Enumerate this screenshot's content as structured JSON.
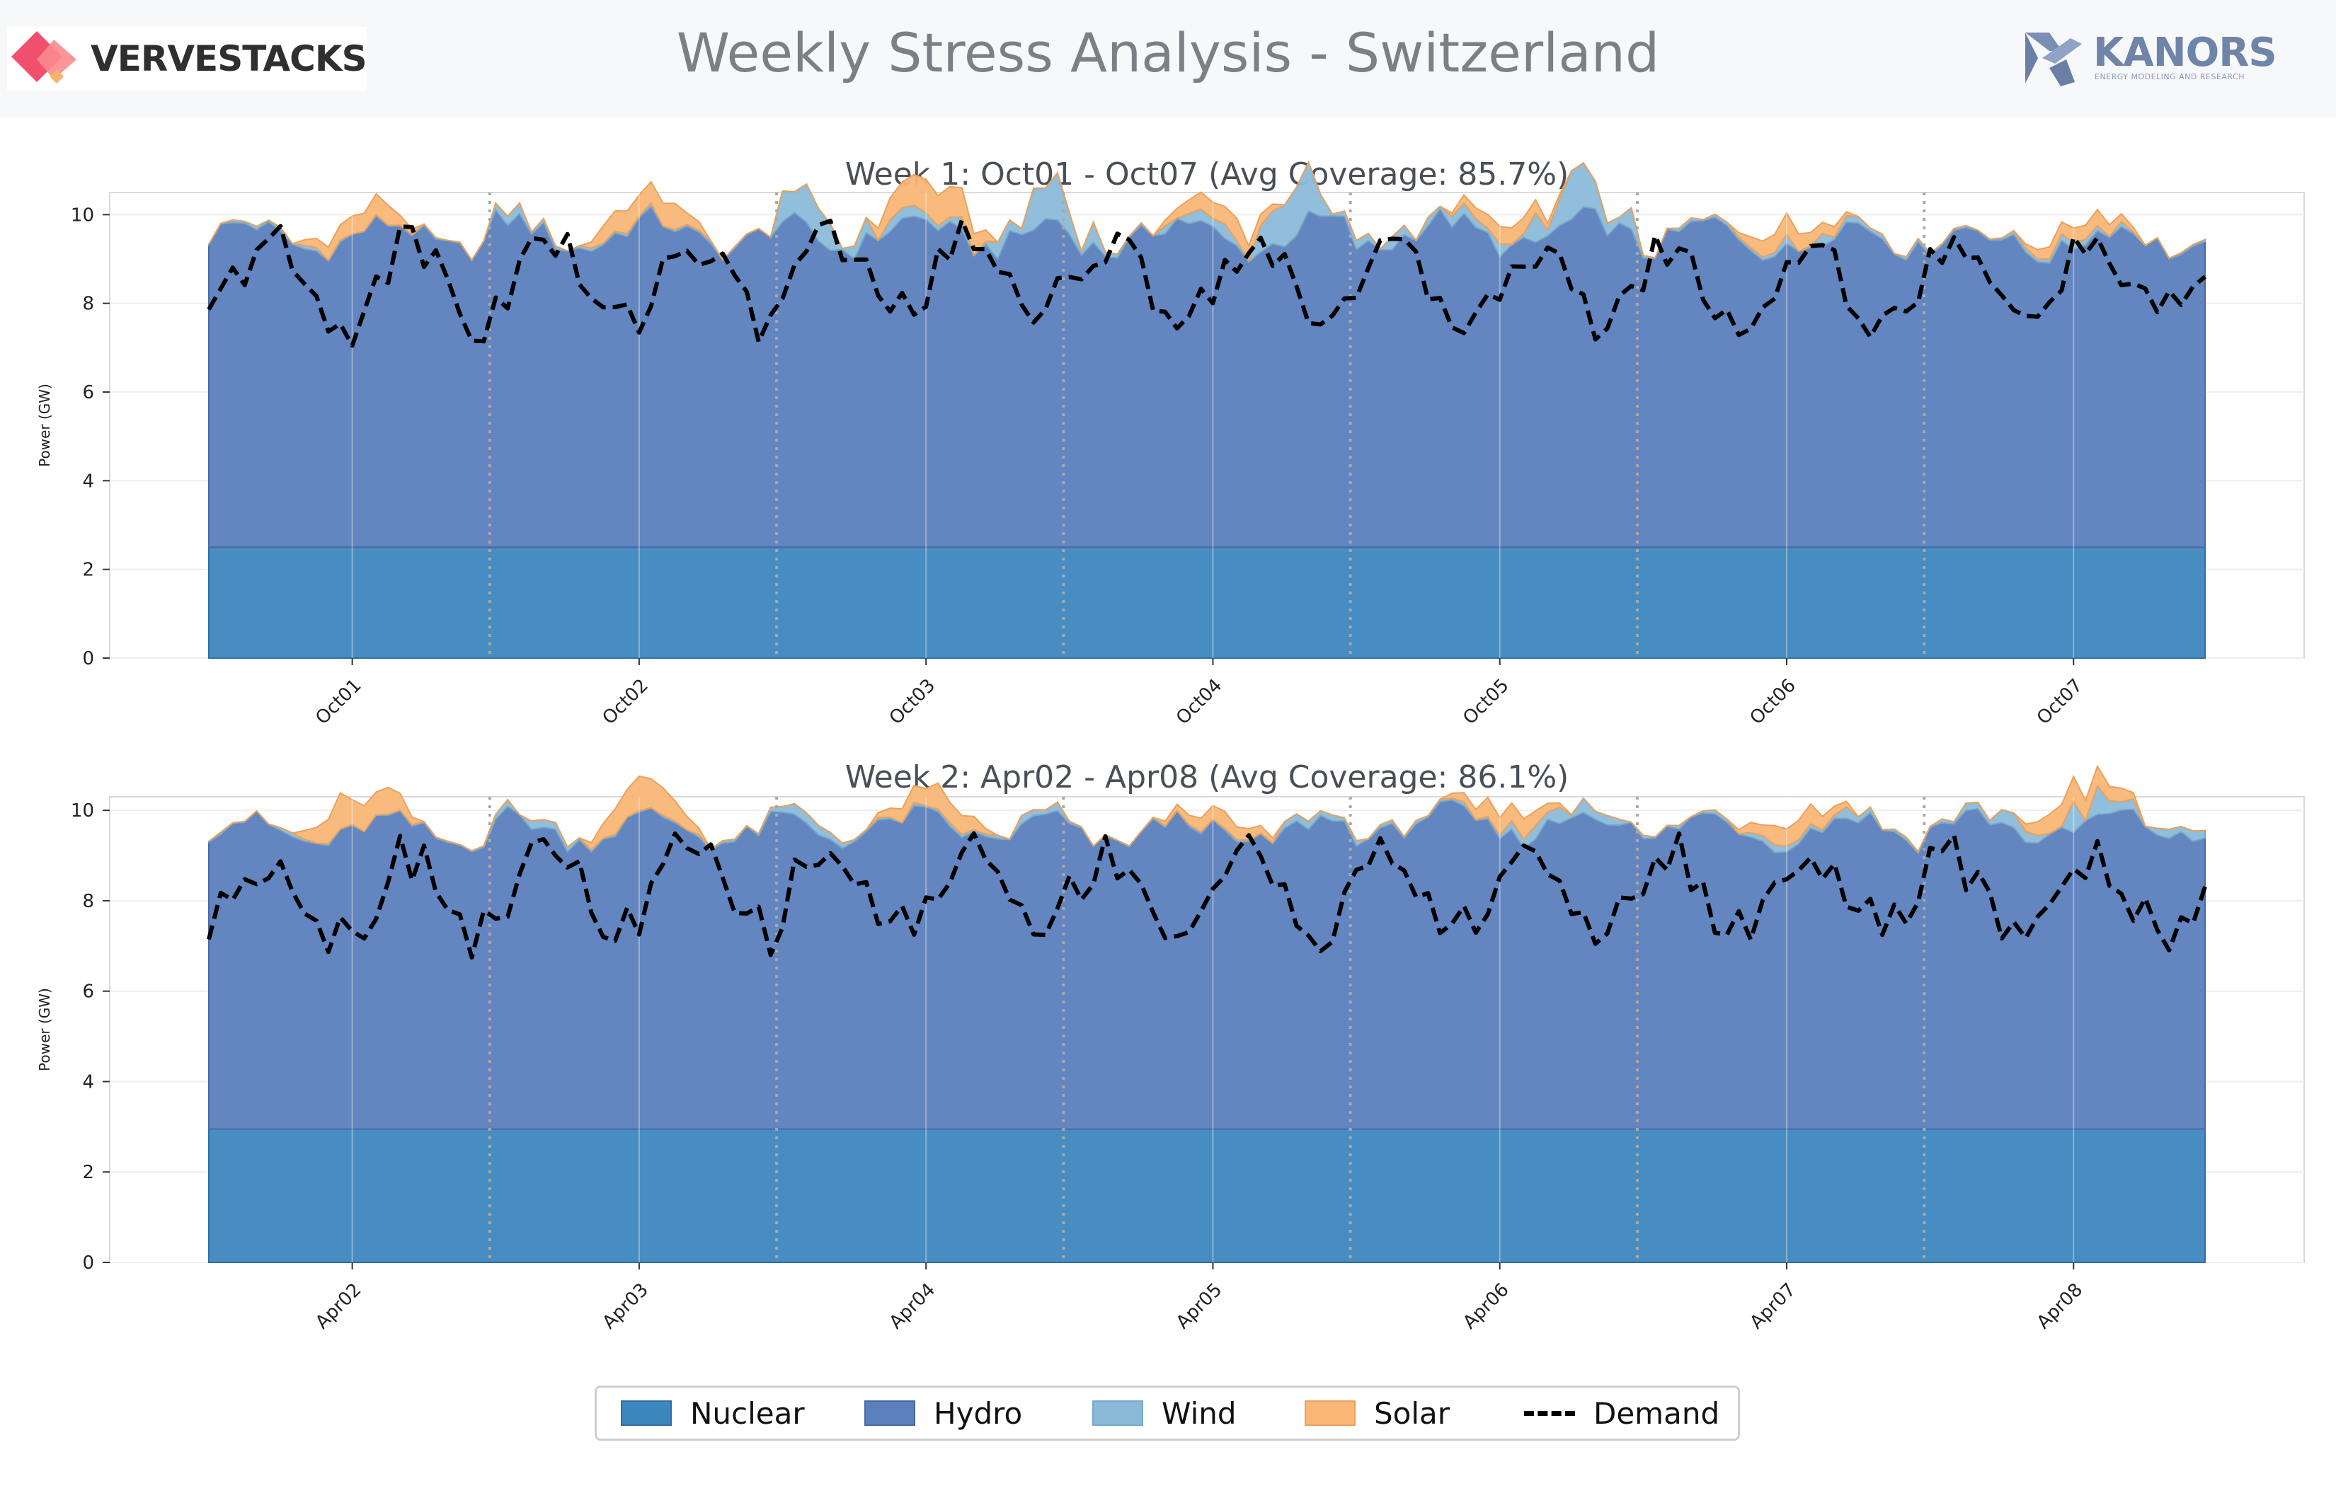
{
  "header": {
    "title": "Weekly Stress Analysis - Switzerland",
    "logo_left": "VERVESTACKS",
    "logo_right": "KANORS",
    "logo_right_tagline": "ENERGY MODELING AND RESEARCH"
  },
  "legend": {
    "items": [
      {
        "label": "Nuclear",
        "color": "#3d87bf",
        "type": "area"
      },
      {
        "label": "Hydro",
        "color": "#5b7fbd",
        "type": "area"
      },
      {
        "label": "Wind",
        "color": "#8bbad8",
        "type": "area"
      },
      {
        "label": "Solar",
        "color": "#f9b676",
        "type": "area"
      },
      {
        "label": "Demand",
        "color": "#000000",
        "type": "dashed-line"
      }
    ]
  },
  "chart_data": [
    {
      "type": "area",
      "title": "Week 1: Oct01 - Oct07 (Avg Coverage: 85.7%)",
      "ylabel": "Power (GW)",
      "xlabel": "",
      "ylim": [
        0,
        10.5
      ],
      "yticks": [
        0,
        2,
        4,
        6,
        8,
        10
      ],
      "categories": [
        "Oct01",
        "Oct02",
        "Oct03",
        "Oct04",
        "Oct05",
        "Oct06",
        "Oct07"
      ],
      "hours_per_day": 24,
      "grid": true,
      "day_separators": "dotted",
      "series": [
        {
          "name": "Nuclear",
          "values": [
            2.5,
            2.5,
            2.5,
            2.5,
            2.5,
            2.5,
            2.5
          ]
        },
        {
          "name": "Hydro",
          "daily_min": [
            6.0,
            6.0,
            6.0,
            5.9,
            6.0,
            5.9,
            5.9
          ],
          "daily_max": [
            7.6,
            7.7,
            7.7,
            7.7,
            7.7,
            7.6,
            7.5
          ]
        },
        {
          "name": "Wind",
          "daily_peak": [
            0.1,
            0.3,
            1.2,
            1.2,
            1.1,
            0.3,
            0.2
          ]
        },
        {
          "name": "Solar",
          "daily_peak": [
            0.6,
            0.8,
            1.0,
            0.6,
            0.4,
            0.5,
            0.4
          ]
        },
        {
          "name": "Demand",
          "daily_min": [
            6.0,
            6.2,
            6.8,
            6.7,
            6.5,
            6.3,
            6.7
          ],
          "daily_max": [
            10.0,
            10.0,
            10.0,
            9.8,
            9.7,
            9.8,
            9.7
          ]
        }
      ]
    },
    {
      "type": "area",
      "title": "Week 2: Apr02 - Apr08 (Avg Coverage: 86.1%)",
      "ylabel": "Power (GW)",
      "xlabel": "",
      "ylim": [
        0,
        10.3
      ],
      "yticks": [
        0,
        2,
        4,
        6,
        8,
        10
      ],
      "categories": [
        "Apr02",
        "Apr03",
        "Apr04",
        "Apr05",
        "Apr06",
        "Apr07",
        "Apr08"
      ],
      "hours_per_day": 24,
      "grid": true,
      "day_separators": "dotted",
      "series": [
        {
          "name": "Nuclear",
          "values": [
            2.95,
            2.95,
            2.95,
            2.95,
            2.95,
            2.95,
            2.95
          ]
        },
        {
          "name": "Hydro",
          "daily_min": [
            5.7,
            5.7,
            5.8,
            5.7,
            5.8,
            5.7,
            5.8
          ],
          "daily_max": [
            7.1,
            7.2,
            7.2,
            7.1,
            7.3,
            7.2,
            7.2
          ]
        },
        {
          "name": "Wind",
          "daily_peak": [
            0.1,
            0.2,
            0.3,
            0.2,
            0.4,
            0.3,
            0.8
          ]
        },
        {
          "name": "Solar",
          "daily_peak": [
            0.9,
            0.8,
            0.6,
            0.4,
            0.5,
            0.5,
            0.6
          ]
        },
        {
          "name": "Demand",
          "daily_min": [
            5.9,
            6.0,
            6.1,
            6.1,
            6.2,
            6.1,
            6.1
          ],
          "daily_max": [
            9.6,
            9.7,
            9.7,
            9.6,
            9.5,
            9.6,
            9.5
          ]
        }
      ]
    }
  ]
}
